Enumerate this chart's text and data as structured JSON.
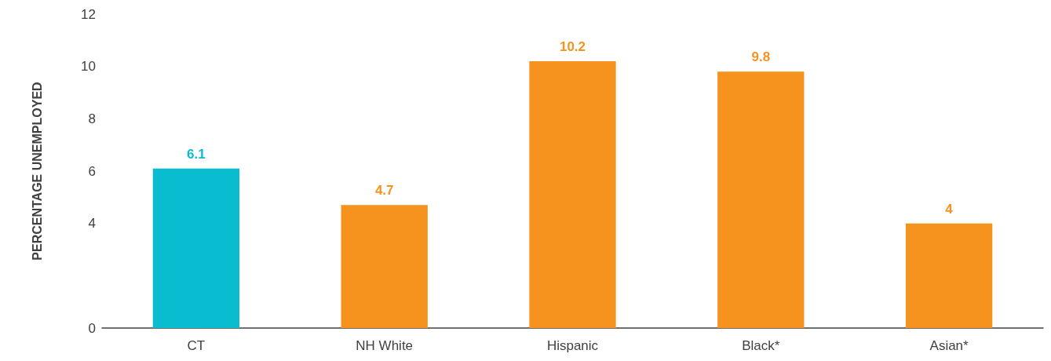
{
  "chart_data": {
    "type": "bar",
    "ylabel": "PERCENTAGE UNEMPLOYED",
    "categories": [
      "CT",
      "NH White",
      "Hispanic",
      "Black*",
      "Asian*"
    ],
    "values": [
      6.1,
      4.7,
      10.2,
      9.8,
      4
    ],
    "colors": [
      "#0abcd0",
      "#f5931e",
      "#f5931e",
      "#f5931e",
      "#f5931e"
    ],
    "ylim": [
      0,
      12
    ],
    "yticks": [
      0,
      4,
      6,
      8,
      10,
      12
    ],
    "data_labels": true
  }
}
